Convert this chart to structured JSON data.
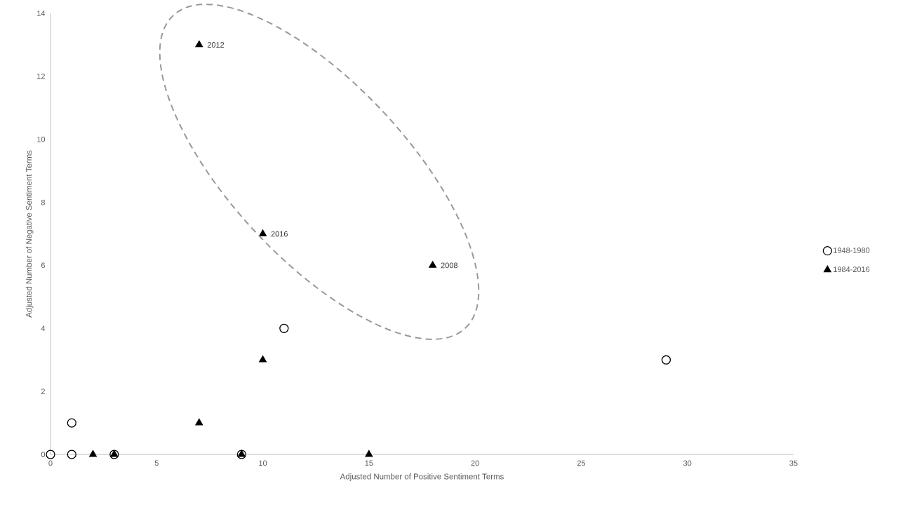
{
  "chart_data": {
    "type": "scatter",
    "xlabel": "Adjusted Number of Positive Sentiment Terms",
    "ylabel": "Adjusted Number of Negative Sentiment Terms",
    "series": [
      {
        "name": "1948-1980",
        "color": "#000000",
        "marker": "circle",
        "x": [
          0,
          1,
          1,
          3,
          9,
          11,
          29
        ],
        "values": [
          0,
          0,
          1,
          0,
          0,
          4,
          3
        ]
      },
      {
        "name": "1984-2016",
        "color": "#000000",
        "marker": "triangle",
        "x": [
          2,
          3,
          7,
          9,
          10,
          15,
          7,
          10,
          18
        ],
        "values": [
          0,
          0,
          1,
          0,
          3,
          0,
          13,
          7,
          6
        ]
      }
    ],
    "annotations": [
      {
        "text": "2012",
        "x": 7,
        "y": 13
      },
      {
        "text": "2016",
        "x": 10,
        "y": 7
      },
      {
        "text": "2008",
        "x": 18,
        "y": 6
      }
    ],
    "xlim": [
      0,
      35
    ],
    "ylim": [
      0,
      14
    ],
    "xticks": [
      0,
      5,
      10,
      15,
      20,
      25,
      30,
      35
    ],
    "yticks": [
      0,
      2,
      4,
      6,
      8,
      10,
      12,
      14
    ],
    "grid": false,
    "legend": "right"
  }
}
